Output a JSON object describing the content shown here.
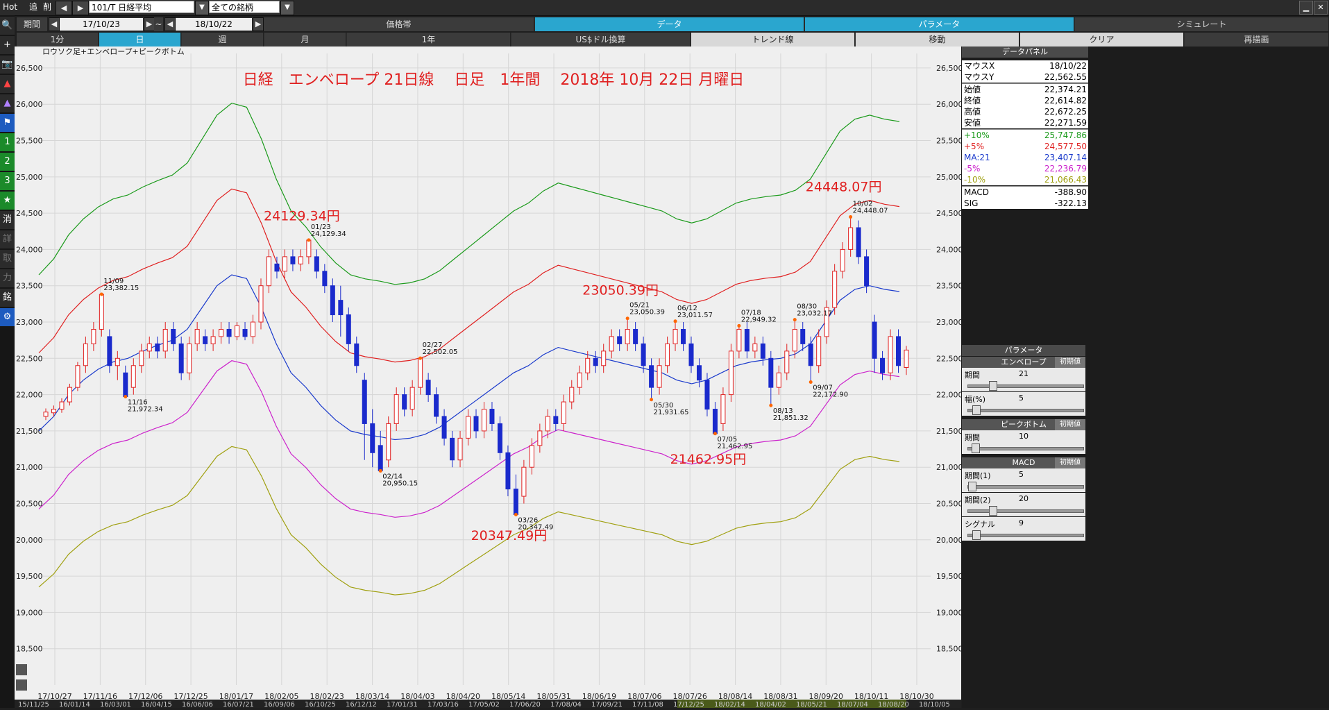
{
  "toolbar": {
    "hot": "Hot",
    "add": "追",
    "del": "削",
    "prev": "◀",
    "next": "▶",
    "symbol": "101/T 日経平均",
    "universe": "全ての銘柄",
    "minimize": "▁",
    "close": "✕"
  },
  "row2": {
    "period_label": "期間",
    "date_from": "17/10/23",
    "tilde": "~",
    "date_to": "18/10/22",
    "tabs": [
      "価格帯",
      "データ",
      "パラメータ",
      "シミュレート"
    ]
  },
  "row3": {
    "tabs": [
      "1分",
      "日",
      "週",
      "月",
      "1年",
      "US$ドル換算",
      "トレンド線",
      "移動",
      "クリア",
      "再描画"
    ]
  },
  "left_tools": [
    "🔍",
    "+",
    "📷",
    "▲",
    "▲",
    "⚑",
    "1",
    "2",
    "3",
    "★",
    "消",
    "詳",
    "取",
    "力",
    "銘",
    "⚙"
  ],
  "panel": {
    "title": "データパネル",
    "rows": [
      {
        "k": "マウスX",
        "v": "18/10/22",
        "color": "#000000"
      },
      {
        "k": "マウスY",
        "v": "22,562.55",
        "color": "#000000"
      },
      {
        "k": "始値",
        "v": "22,374.21",
        "color": "#000000"
      },
      {
        "k": "終値",
        "v": "22,614.82",
        "color": "#000000"
      },
      {
        "k": "高値",
        "v": "22,672.25",
        "color": "#000000"
      },
      {
        "k": "安値",
        "v": "22,271.59",
        "color": "#000000"
      },
      {
        "k": "+10%",
        "v": "25,747.86",
        "color": "#1a9a1a"
      },
      {
        "k": "+5%",
        "v": "24,577.50",
        "color": "#e02020"
      },
      {
        "k": "MA:21",
        "v": "23,407.14",
        "color": "#1a3acc"
      },
      {
        "k": "-5%",
        "v": "22,236.79",
        "color": "#cc22cc"
      },
      {
        "k": "-10%",
        "v": "21,066.43",
        "color": "#a0a010"
      },
      {
        "k": "MACD",
        "v": "-388.90",
        "color": "#000000"
      },
      {
        "k": "SIG",
        "v": "-322.13",
        "color": "#000000"
      }
    ],
    "param_title": "パラメータ",
    "reset": "初期値",
    "groups": [
      {
        "name": "エンベロープ",
        "items": [
          {
            "label": "期間",
            "value": "21",
            "pos": 0.2
          },
          {
            "label": "幅(%)",
            "value": "5",
            "pos": 0.04
          }
        ]
      },
      {
        "name": "ピークボトム",
        "items": [
          {
            "label": "期間",
            "value": "10",
            "pos": 0.03
          }
        ]
      },
      {
        "name": "MACD",
        "items": [
          {
            "label": "期間(1)",
            "value": "5",
            "pos": 0.0
          },
          {
            "label": "期間(2)",
            "value": "20",
            "pos": 0.2
          },
          {
            "label": "シグナル",
            "value": "9",
            "pos": 0.04
          }
        ]
      }
    ]
  },
  "chart_data": {
    "type": "line",
    "subtitle": "ロウソク足+エンベロープ+ピークボトム",
    "title": "日経　エンベロープ 21日線　 日足　1年間　 2018年 10月 22日 月曜日",
    "ylim": [
      18000,
      26700
    ],
    "yticks": [
      18500,
      19000,
      19500,
      20000,
      20500,
      21000,
      21500,
      22000,
      22500,
      23000,
      23500,
      24000,
      24500,
      25000,
      25500,
      26000,
      26500
    ],
    "ytick_labels": [
      "18,500",
      "19,000",
      "19,500",
      "20,000",
      "20,500",
      "21,000",
      "21,500",
      "22,000",
      "22,500",
      "23,000",
      "23,500",
      "24,000",
      "24,500",
      "25,000",
      "25,500",
      "26,000",
      "26,500"
    ],
    "xticks": [
      "17/10/27",
      "17/11/16",
      "17/12/06",
      "17/12/25",
      "18/01/17",
      "18/02/05",
      "18/02/23",
      "18/03/14",
      "18/04/03",
      "18/04/20",
      "18/05/14",
      "18/05/31",
      "18/06/19",
      "18/07/06",
      "18/07/26",
      "18/08/14",
      "18/08/31",
      "18/09/20",
      "18/10/11",
      "18/10/30"
    ],
    "bottom_ticks": [
      "15/11/25",
      "16/01/14",
      "16/03/01",
      "16/04/15",
      "16/06/06",
      "16/07/21",
      "16/09/06",
      "16/10/25",
      "16/12/12",
      "17/01/31",
      "17/03/16",
      "17/05/02",
      "17/06/20",
      "17/08/04",
      "17/09/21",
      "17/11/08",
      "17/12/25",
      "18/02/14",
      "18/04/02",
      "18/05/21",
      "18/07/04",
      "18/08/20",
      "18/10/05"
    ],
    "ma_line": [
      21500,
      21700,
      22000,
      22200,
      22350,
      22450,
      22500,
      22600,
      22680,
      22750,
      22900,
      23200,
      23500,
      23650,
      23600,
      23200,
      22700,
      22300,
      22100,
      21850,
      21650,
      21500,
      21450,
      21420,
      21380,
      21400,
      21450,
      21550,
      21700,
      21850,
      22000,
      22150,
      22300,
      22400,
      22550,
      22650,
      22600,
      22550,
      22500,
      22450,
      22400,
      22350,
      22300,
      22200,
      22150,
      22200,
      22300,
      22400,
      22450,
      22480,
      22500,
      22560,
      22700,
      23000,
      23300,
      23450,
      23500,
      23450,
      23420
    ],
    "series": [
      {
        "name": "+10%",
        "color": "#1a9a1a",
        "offset": 1.1
      },
      {
        "name": "+5%",
        "color": "#e02020",
        "offset": 1.05
      },
      {
        "name": "MA:21",
        "color": "#1a3acc",
        "offset": 1.0
      },
      {
        "name": "-5%",
        "color": "#cc22cc",
        "offset": 0.95
      },
      {
        "name": "-10%",
        "color": "#a0a010",
        "offset": 0.9
      }
    ],
    "candles": [
      [
        21700,
        21760,
        21650,
        21810
      ],
      [
        21750,
        21800,
        21700,
        21850
      ],
      [
        21800,
        21900,
        21750,
        21950
      ],
      [
        21900,
        22100,
        21850,
        22150
      ],
      [
        22100,
        22400,
        22050,
        22450
      ],
      [
        22400,
        22700,
        22300,
        22800
      ],
      [
        22700,
        22900,
        22600,
        23000
      ],
      [
        22900,
        23382,
        22800,
        23382
      ],
      [
        22800,
        22400,
        22300,
        22900
      ],
      [
        22400,
        22500,
        22200,
        22600
      ],
      [
        22300,
        21972,
        21972,
        22400
      ],
      [
        22100,
        22400,
        22000,
        22500
      ],
      [
        22400,
        22600,
        22300,
        22700
      ],
      [
        22600,
        22700,
        22500,
        22800
      ],
      [
        22700,
        22600,
        22500,
        22800
      ],
      [
        22600,
        22900,
        22500,
        23000
      ],
      [
        22900,
        22700,
        22600,
        23000
      ],
      [
        22700,
        22300,
        22200,
        22800
      ],
      [
        22300,
        22700,
        22200,
        22800
      ],
      [
        22700,
        22900,
        22600,
        23000
      ],
      [
        22800,
        22700,
        22600,
        22900
      ],
      [
        22700,
        22800,
        22600,
        22900
      ],
      [
        22800,
        22900,
        22700,
        23000
      ],
      [
        22900,
        22800,
        22700,
        23000
      ],
      [
        22800,
        22950,
        22750,
        23000
      ],
      [
        22900,
        22800,
        22750,
        23000
      ],
      [
        22800,
        23000,
        22700,
        23100
      ],
      [
        23000,
        23500,
        22900,
        23600
      ],
      [
        23500,
        23900,
        23400,
        24000
      ],
      [
        23800,
        23700,
        23600,
        23900
      ],
      [
        23700,
        23900,
        23600,
        24000
      ],
      [
        23900,
        23800,
        23700,
        24000
      ],
      [
        23800,
        23900,
        23700,
        24000
      ],
      [
        23900,
        24129,
        23800,
        24129
      ],
      [
        23900,
        23700,
        23600,
        24000
      ],
      [
        23700,
        23500,
        23400,
        23800
      ],
      [
        23500,
        23100,
        23000,
        23600
      ],
      [
        23300,
        23100,
        22800,
        23500
      ],
      [
        23100,
        22700,
        22600,
        23200
      ],
      [
        22700,
        22400,
        22300,
        22800
      ],
      [
        22200,
        21600,
        21100,
        22300
      ],
      [
        21600,
        21200,
        21000,
        21800
      ],
      [
        21300,
        20950,
        20950,
        21500
      ],
      [
        21100,
        21600,
        21000,
        21700
      ],
      [
        21600,
        22000,
        21500,
        22100
      ],
      [
        22000,
        21800,
        21700,
        22100
      ],
      [
        21800,
        22100,
        21700,
        22200
      ],
      [
        22100,
        22502,
        22000,
        22502
      ],
      [
        22200,
        22000,
        21900,
        22300
      ],
      [
        22000,
        21700,
        21600,
        22100
      ],
      [
        21700,
        21400,
        21300,
        21800
      ],
      [
        21400,
        21100,
        21000,
        21500
      ],
      [
        21100,
        21400,
        21000,
        21500
      ],
      [
        21400,
        21700,
        21300,
        21800
      ],
      [
        21700,
        21500,
        21400,
        21800
      ],
      [
        21500,
        21800,
        21400,
        21900
      ],
      [
        21800,
        21600,
        21500,
        21900
      ],
      [
        21600,
        21200,
        21100,
        21700
      ],
      [
        21200,
        20700,
        20600,
        21300
      ],
      [
        20700,
        20347,
        20347,
        20900
      ],
      [
        20600,
        21000,
        20500,
        21100
      ],
      [
        21000,
        21300,
        20900,
        21400
      ],
      [
        21300,
        21500,
        21200,
        21600
      ],
      [
        21500,
        21700,
        21400,
        21800
      ],
      [
        21700,
        21600,
        21500,
        21800
      ],
      [
        21600,
        21900,
        21500,
        22000
      ],
      [
        21900,
        22100,
        21800,
        22200
      ],
      [
        22100,
        22300,
        22000,
        22400
      ],
      [
        22300,
        22500,
        22200,
        22600
      ],
      [
        22500,
        22400,
        22300,
        22600
      ],
      [
        22400,
        22600,
        22300,
        22700
      ],
      [
        22600,
        22800,
        22500,
        22900
      ],
      [
        22800,
        22700,
        22600,
        22900
      ],
      [
        22700,
        22900,
        22600,
        23050
      ],
      [
        22900,
        22700,
        22600,
        23000
      ],
      [
        22700,
        22400,
        22300,
        22800
      ],
      [
        22400,
        22100,
        21931,
        22500
      ],
      [
        22100,
        22400,
        22000,
        22500
      ],
      [
        22400,
        22700,
        22300,
        22800
      ],
      [
        22700,
        22900,
        22600,
        23011
      ],
      [
        22900,
        22700,
        22600,
        23000
      ],
      [
        22700,
        22400,
        22300,
        22800
      ],
      [
        22400,
        22200,
        22100,
        22500
      ],
      [
        22200,
        21800,
        21700,
        22300
      ],
      [
        21800,
        21462,
        21462,
        21900
      ],
      [
        21600,
        22000,
        21500,
        22100
      ],
      [
        22000,
        22600,
        21900,
        22700
      ],
      [
        22600,
        22900,
        22500,
        22949
      ],
      [
        22900,
        22600,
        22500,
        23000
      ],
      [
        22600,
        22700,
        22500,
        22800
      ],
      [
        22700,
        22500,
        22400,
        22800
      ],
      [
        22500,
        22100,
        21851,
        22600
      ],
      [
        22100,
        22300,
        22000,
        22400
      ],
      [
        22300,
        22600,
        22200,
        22700
      ],
      [
        22600,
        22900,
        22500,
        23032
      ],
      [
        22900,
        22700,
        22600,
        23000
      ],
      [
        22700,
        22400,
        22172,
        22800
      ],
      [
        22400,
        22800,
        22300,
        22900
      ],
      [
        22800,
        23200,
        22700,
        23300
      ],
      [
        23200,
        23700,
        23100,
        23800
      ],
      [
        23700,
        24000,
        23600,
        24100
      ],
      [
        24000,
        24300,
        23900,
        24448
      ],
      [
        24300,
        23900,
        23800,
        24400
      ],
      [
        23900,
        23500,
        23400,
        24000
      ],
      [
        23000,
        22500,
        22300,
        23100
      ],
      [
        22500,
        22300,
        22200,
        22600
      ],
      [
        22300,
        22800,
        22200,
        22900
      ],
      [
        22800,
        22400,
        22300,
        22900
      ],
      [
        22374,
        22614,
        22271,
        22672
      ]
    ],
    "annotations": [
      {
        "i": 7,
        "type": "peak",
        "date": "11/09",
        "value": "23,382.15",
        "price": 23382.15
      },
      {
        "i": 10,
        "type": "bottom",
        "date": "11/16",
        "value": "21,972.34",
        "price": 21972.34
      },
      {
        "i": 33,
        "type": "peak",
        "date": "01/23",
        "value": "24,129.34",
        "price": 24129.34
      },
      {
        "i": 42,
        "type": "bottom",
        "date": "02/14",
        "value": "20,950.15",
        "price": 20950.15
      },
      {
        "i": 47,
        "type": "peak",
        "date": "02/27",
        "value": "22,502.05",
        "price": 22502.05
      },
      {
        "i": 59,
        "type": "bottom",
        "date": "03/26",
        "value": "20,347.49",
        "price": 20347.49
      },
      {
        "i": 73,
        "type": "peak",
        "date": "05/21",
        "value": "23,050.39",
        "price": 23050.39
      },
      {
        "i": 76,
        "type": "bottom",
        "date": "05/30",
        "value": "21,931.65",
        "price": 21931.65
      },
      {
        "i": 79,
        "type": "peak",
        "date": "06/12",
        "value": "23,011.57",
        "price": 23011.57
      },
      {
        "i": 84,
        "type": "bottom",
        "date": "07/05",
        "value": "21,462.95",
        "price": 21462.95
      },
      {
        "i": 87,
        "type": "peak",
        "date": "07/18",
        "value": "22,949.32",
        "price": 22949.32
      },
      {
        "i": 91,
        "type": "bottom",
        "date": "08/13",
        "value": "21,851.32",
        "price": 21851.32
      },
      {
        "i": 94,
        "type": "peak",
        "date": "08/30",
        "value": "23,032.17",
        "price": 23032.17
      },
      {
        "i": 96,
        "type": "bottom",
        "date": "09/07",
        "value": "22,172.90",
        "price": 22172.9
      },
      {
        "i": 101,
        "type": "peak",
        "date": "10/02",
        "value": "24,448.07",
        "price": 24448.07
      }
    ],
    "big_labels": [
      {
        "text": "24129.34円",
        "i": 33,
        "price": 24400
      },
      {
        "text": "23050.39円",
        "i": 73,
        "price": 23380
      },
      {
        "text": "21462.95円",
        "i": 84,
        "price": 21050
      },
      {
        "text": "20347.49円",
        "i": 59,
        "price": 20000
      },
      {
        "text": "24448.07円",
        "i": 101,
        "price": 24800
      }
    ]
  }
}
